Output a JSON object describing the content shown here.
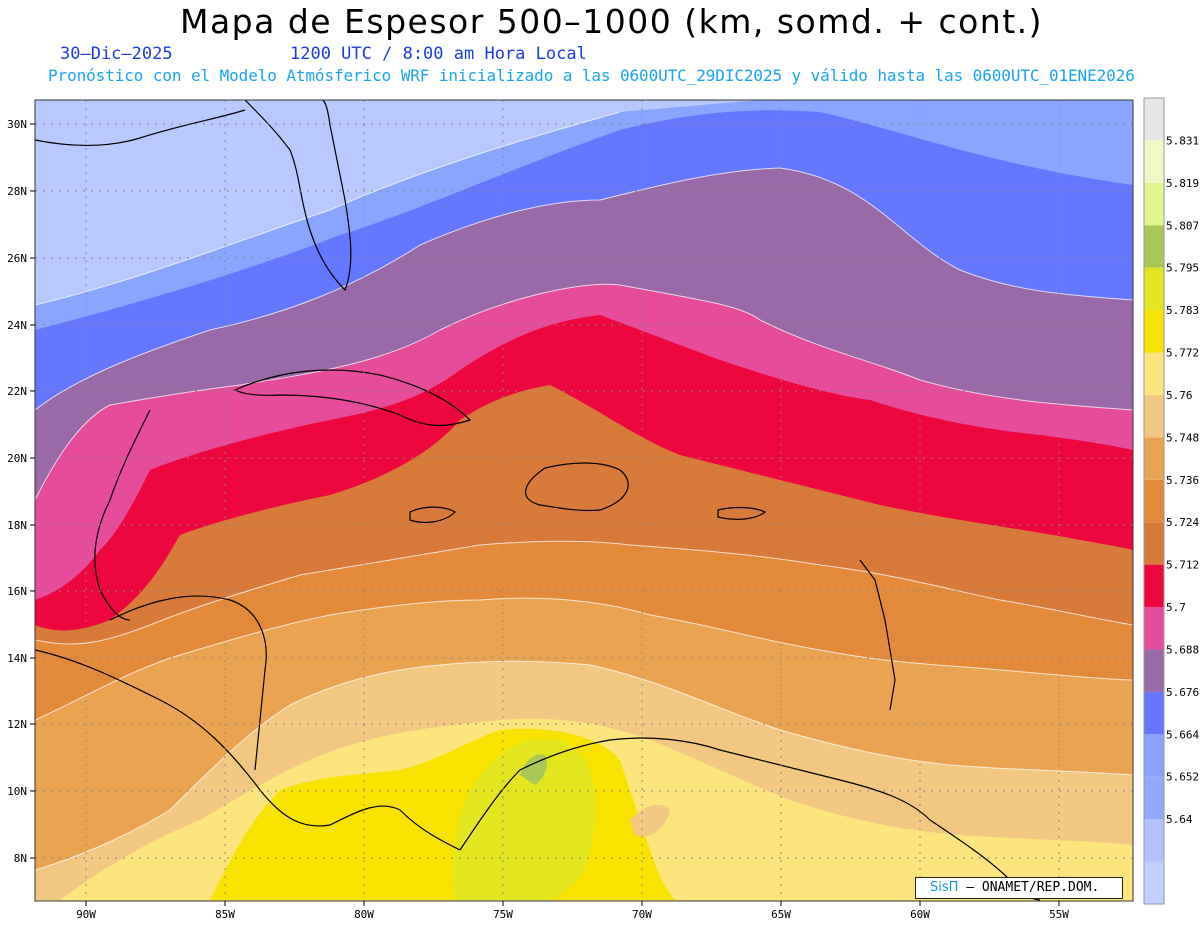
{
  "header": {
    "title": "Mapa de Espesor 500–1000 (km, somd. + cont.)",
    "date": "30–Dic–2025",
    "time": "1200 UTC / 8:00 am Hora Local",
    "subtitle": "Pronóstico con el Modelo Atmósferico WRF inicializado a las 0600UTC_29DIC2025 y válido hasta las  0600UTC_01ENE2026"
  },
  "map": {
    "lat_labels": [
      "30N",
      "28N",
      "26N",
      "24N",
      "22N",
      "20N",
      "18N",
      "16N",
      "14N",
      "12N",
      "10N",
      "8N"
    ],
    "lon_labels": [
      "90W",
      "85W",
      "80W",
      "75W",
      "70W",
      "65W",
      "60W",
      "55W"
    ],
    "contour_band_colors": [
      "#b9c8ff",
      "#8aa5ff",
      "#6677ff",
      "#9a6aa8",
      "#e64c9a",
      "#ee063e",
      "#d87a3a",
      "#e3893a",
      "#eaa451",
      "#f1c781",
      "#fde57d",
      "#f8e200",
      "#e3e61e",
      "#aac856"
    ]
  },
  "legend": {
    "values": [
      "5.64",
      "5.652",
      "5.664",
      "5.676",
      "5.688",
      "5.7",
      "5.712",
      "5.724",
      "5.736",
      "5.748",
      "5.76",
      "5.772",
      "5.783",
      "5.795",
      "5.807",
      "5.819",
      "5.831"
    ],
    "colors": [
      "#c2ceff",
      "#b3c2ff",
      "#90a9ff",
      "#8aa2ff",
      "#6677ff",
      "#9a6aa8",
      "#e64c9a",
      "#ee063e",
      "#d87a3a",
      "#e3893a",
      "#eaa451",
      "#f1c781",
      "#fde57d",
      "#f8e200",
      "#e3e61e",
      "#aac856",
      "#e2f690",
      "#eef9c6",
      "#e6e6e6"
    ]
  },
  "credit": {
    "brand": "SisΠ",
    "text": "– ONAMET/REP.DOM."
  }
}
